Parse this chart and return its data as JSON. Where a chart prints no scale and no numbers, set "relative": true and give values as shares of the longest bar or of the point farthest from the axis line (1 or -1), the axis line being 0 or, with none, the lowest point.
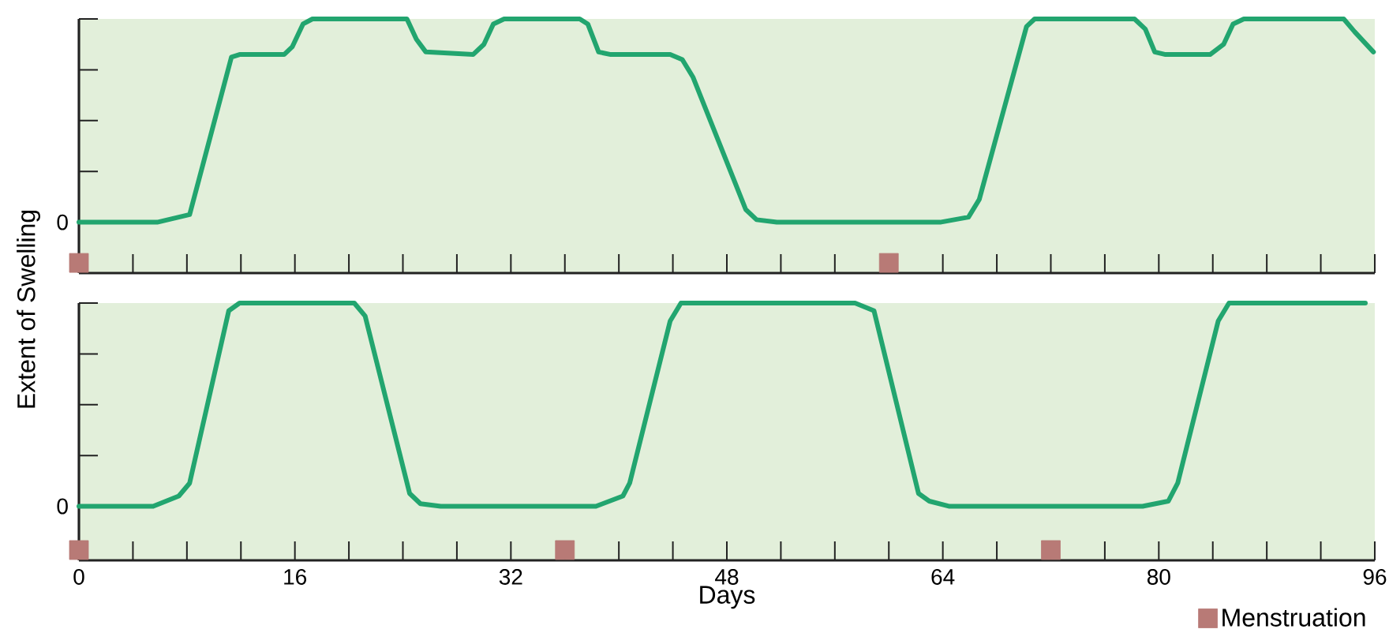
{
  "chart_data": [
    {
      "type": "line",
      "relative": true,
      "ylabel": "Extent of Swelling",
      "annotations": [
        {
          "text": "0",
          "x": 0,
          "y": 0.2
        }
      ],
      "xlim": [
        0,
        96
      ],
      "xticks": [
        0,
        {
          "value": 4,
          "label": null
        },
        {
          "value": 8,
          "label": null
        },
        {
          "value": 12,
          "label": null
        },
        16,
        {
          "value": 20,
          "label": null
        },
        {
          "value": 24,
          "label": null
        },
        {
          "value": 28,
          "label": null
        },
        32,
        {
          "value": 36,
          "label": null
        },
        {
          "value": 40,
          "label": null
        },
        {
          "value": 44,
          "label": null
        },
        48,
        {
          "value": 52,
          "label": null
        },
        {
          "value": 56,
          "label": null
        },
        {
          "value": 60,
          "label": null
        },
        64,
        {
          "value": 68,
          "label": null
        },
        {
          "value": 72,
          "label": null
        },
        {
          "value": 76,
          "label": null
        },
        80,
        {
          "value": 84,
          "label": null
        },
        {
          "value": 88,
          "label": null
        },
        {
          "value": 92,
          "label": null
        },
        96
      ],
      "tick_labels": false,
      "series": [
        {
          "color": "#22a56f",
          "x": [
            0,
            5.8,
            8.2,
            11.3,
            11.9,
            15.2,
            15.8,
            16.6,
            17.3,
            24.3,
            25,
            25.7,
            29.2,
            30,
            30.7,
            31.5,
            37.1,
            37.7,
            38.5,
            39.4,
            43.8,
            44.7,
            45.5,
            49.4,
            50.2,
            51.7,
            63.8,
            65.9,
            66.7,
            70.2,
            70.8,
            78.2,
            79,
            79.7,
            80.5,
            83.8,
            84.8,
            85.5,
            86.3,
            93.7,
            94.5,
            95.9
          ],
          "values": [
            0.2,
            0.2,
            0.23,
            0.85,
            0.86,
            0.86,
            0.89,
            0.98,
            1,
            1,
            0.92,
            0.87,
            0.86,
            0.9,
            0.98,
            1,
            1,
            0.98,
            0.87,
            0.86,
            0.86,
            0.84,
            0.77,
            0.25,
            0.21,
            0.2,
            0.2,
            0.22,
            0.29,
            0.97,
            1,
            1,
            0.96,
            0.87,
            0.86,
            0.86,
            0.9,
            0.98,
            1,
            1,
            0.95,
            0.87
          ]
        },
        {
          "type": "scatter",
          "marker": "square",
          "color": "#b87a76",
          "x": [
            0,
            60
          ],
          "values": [
            0.04,
            0.04
          ]
        }
      ]
    },
    {
      "type": "line",
      "relative": true,
      "xlabel": "Days",
      "annotations": [
        {
          "text": "0",
          "x": 0,
          "y": 0.21
        }
      ],
      "xlim": [
        0,
        96
      ],
      "xticks": [
        0,
        {
          "value": 4,
          "label": null
        },
        {
          "value": 8,
          "label": null
        },
        {
          "value": 12,
          "label": null
        },
        16,
        {
          "value": 20,
          "label": null
        },
        {
          "value": 24,
          "label": null
        },
        {
          "value": 28,
          "label": null
        },
        32,
        {
          "value": 36,
          "label": null
        },
        {
          "value": 40,
          "label": null
        },
        {
          "value": 44,
          "label": null
        },
        48,
        {
          "value": 52,
          "label": null
        },
        {
          "value": 56,
          "label": null
        },
        {
          "value": 60,
          "label": null
        },
        64,
        {
          "value": 68,
          "label": null
        },
        {
          "value": 72,
          "label": null
        },
        {
          "value": 76,
          "label": null
        },
        80,
        {
          "value": 84,
          "label": null
        },
        {
          "value": 88,
          "label": null
        },
        {
          "value": 92,
          "label": null
        },
        96
      ],
      "tick_labels": "x",
      "legend": "bottom right",
      "series": [
        {
          "color": "#22a56f",
          "x": [
            0,
            5.5,
            7.4,
            8.2,
            11.1,
            11.9,
            20.4,
            21.2,
            24.5,
            25.3,
            26.8,
            38.3,
            40.3,
            40.8,
            43.8,
            44.6,
            57.5,
            58.9,
            62.2,
            63,
            64.5,
            78.8,
            80.7,
            81.4,
            84.4,
            85.2,
            95.3
          ],
          "values": [
            0.21,
            0.21,
            0.25,
            0.3,
            0.97,
            1,
            1,
            0.95,
            0.26,
            0.22,
            0.21,
            0.21,
            0.25,
            0.3,
            0.93,
            1,
            1,
            0.97,
            0.26,
            0.23,
            0.21,
            0.21,
            0.23,
            0.3,
            0.93,
            1,
            1
          ]
        },
        {
          "type": "scatter",
          "marker": "square",
          "name": "Menstruation",
          "color": "#b87a76",
          "x": [
            0,
            36,
            72
          ],
          "values": [
            0.04,
            0.04,
            0.04
          ]
        }
      ]
    }
  ]
}
